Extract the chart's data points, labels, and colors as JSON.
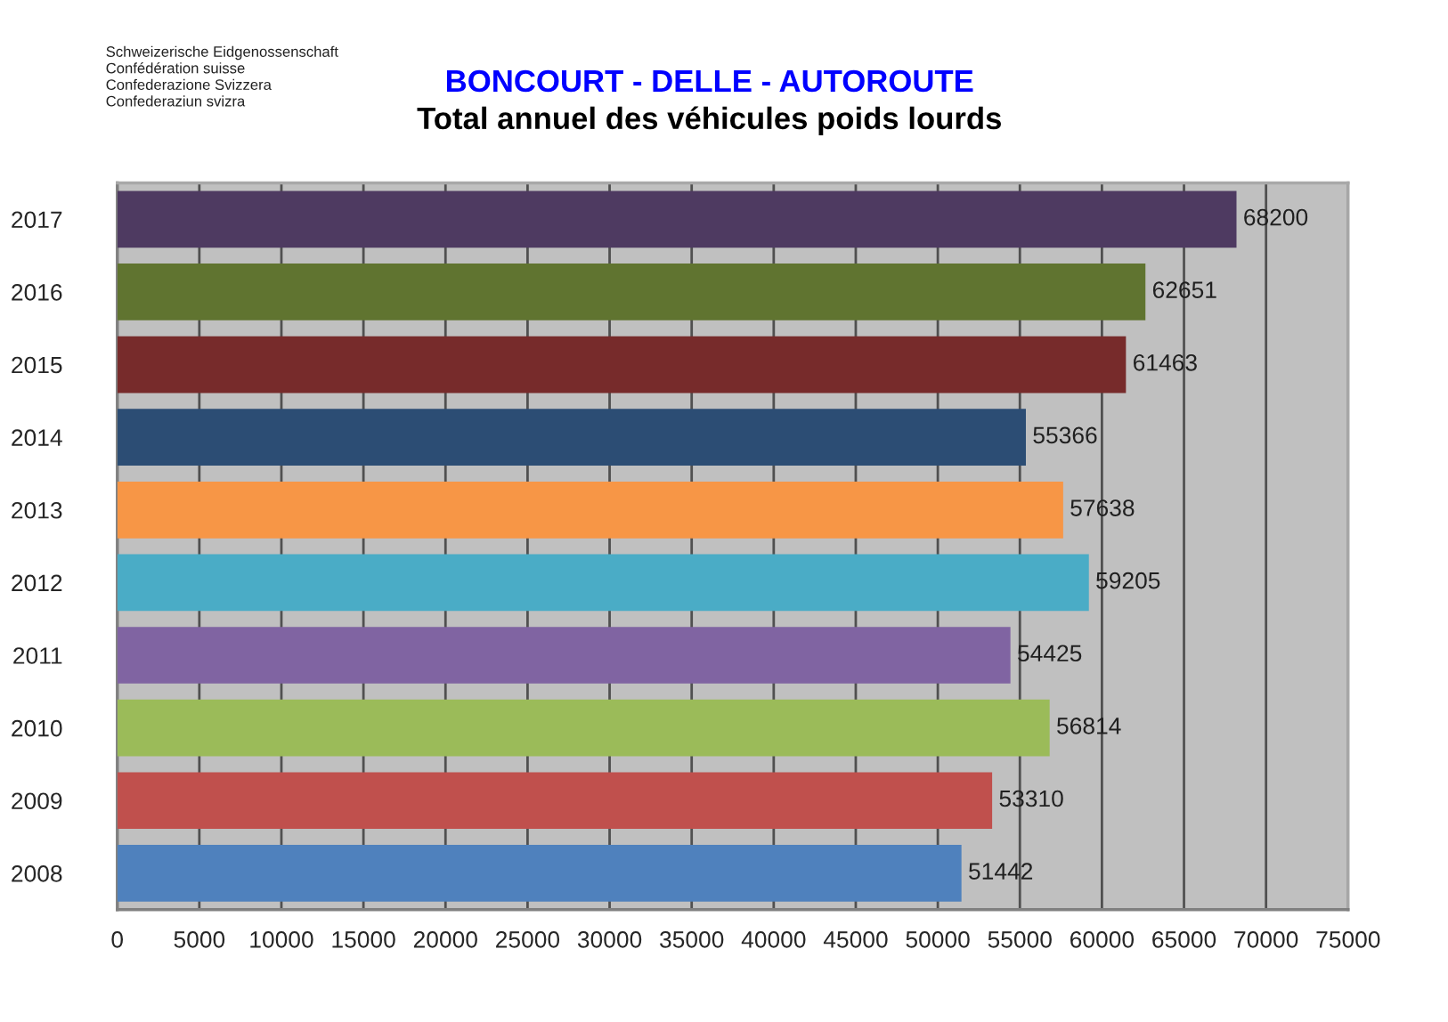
{
  "chart_data": {
    "type": "bar",
    "orientation": "horizontal",
    "title": "BONCOURT - DELLE - AUTOROUTE",
    "subtitle": "Total annuel des véhicules poids lourds",
    "annotations": [
      "Schweizerische Eidgenossenschaft\nConfédération suisse\nConfederazione Svizzera\nConfederaziun svizra"
    ],
    "categories": [
      "2017",
      "2016",
      "2015",
      "2014",
      "2013",
      "2012",
      "2011",
      "2010",
      "2009",
      "2008"
    ],
    "values": [
      68200,
      62651,
      61463,
      55366,
      57638,
      59205,
      54425,
      56814,
      53310,
      51442
    ],
    "colors": [
      "#4e3a61",
      "#607430",
      "#772b2b",
      "#2c4d74",
      "#f79646",
      "#4aacc6",
      "#8064a2",
      "#9bbb59",
      "#c0504d",
      "#4f81bd"
    ],
    "xlim": [
      0,
      75000
    ],
    "xticks": [
      0,
      5000,
      10000,
      15000,
      20000,
      25000,
      30000,
      35000,
      40000,
      45000,
      50000,
      55000,
      60000,
      65000,
      70000,
      75000
    ],
    "grid": "x",
    "data_labels": true
  }
}
